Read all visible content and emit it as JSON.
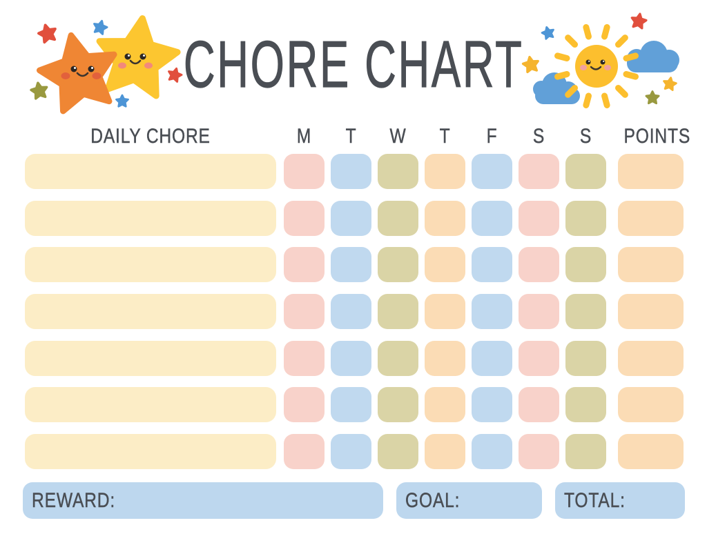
{
  "title": "CHORE CHART",
  "header": {
    "chore_column": "DAILY CHORE",
    "days": [
      "M",
      "T",
      "W",
      "T",
      "F",
      "S",
      "S"
    ],
    "points_column": "POINTS"
  },
  "table": {
    "row_count": 7,
    "day_cell_colors": [
      "pink",
      "blue",
      "olive",
      "peach",
      "blue",
      "pink",
      "olive"
    ],
    "points_cell_color": "peach",
    "rows": [
      {
        "chore": "",
        "days": [
          "",
          "",
          "",
          "",
          "",
          "",
          ""
        ],
        "points": ""
      },
      {
        "chore": "",
        "days": [
          "",
          "",
          "",
          "",
          "",
          "",
          ""
        ],
        "points": ""
      },
      {
        "chore": "",
        "days": [
          "",
          "",
          "",
          "",
          "",
          "",
          ""
        ],
        "points": ""
      },
      {
        "chore": "",
        "days": [
          "",
          "",
          "",
          "",
          "",
          "",
          ""
        ],
        "points": ""
      },
      {
        "chore": "",
        "days": [
          "",
          "",
          "",
          "",
          "",
          "",
          ""
        ],
        "points": ""
      },
      {
        "chore": "",
        "days": [
          "",
          "",
          "",
          "",
          "",
          "",
          ""
        ],
        "points": ""
      },
      {
        "chore": "",
        "days": [
          "",
          "",
          "",
          "",
          "",
          "",
          ""
        ],
        "points": ""
      }
    ]
  },
  "footer": {
    "reward_label": "REWARD:",
    "reward_value": "",
    "goal_label": "GOAL:",
    "goal_value": "",
    "total_label": "TOTAL:",
    "total_value": ""
  },
  "colors": {
    "ink": "#4a4e54",
    "pink": "#f8d2ca",
    "blue": "#c0d9ef",
    "olive": "#dad4a6",
    "peach": "#fbdcb5",
    "cream": "#fcedc6",
    "footer_blue": "#bdd7ee",
    "cloud_blue": "#61a0d8",
    "sun_yellow": "#fcbf2e",
    "star_orange": "#ef8634",
    "star_yellow": "#fcc630",
    "mini_star_red": "#e14f3d",
    "mini_star_blue": "#4d95d6",
    "mini_star_olive": "#99993f",
    "mini_star_yellow": "#f5b42e",
    "cheek_orange_star": "#e2603c",
    "cheek_yellow_star": "#f2897c",
    "cheek_sun": "#f2a19e",
    "eye_black": "#2b2623",
    "smile_stroke": "#3a342f"
  },
  "decorations": {
    "left": [
      "orange-star",
      "yellow-star",
      "mini-stars"
    ],
    "right": [
      "sun",
      "clouds",
      "mini-stars"
    ]
  }
}
